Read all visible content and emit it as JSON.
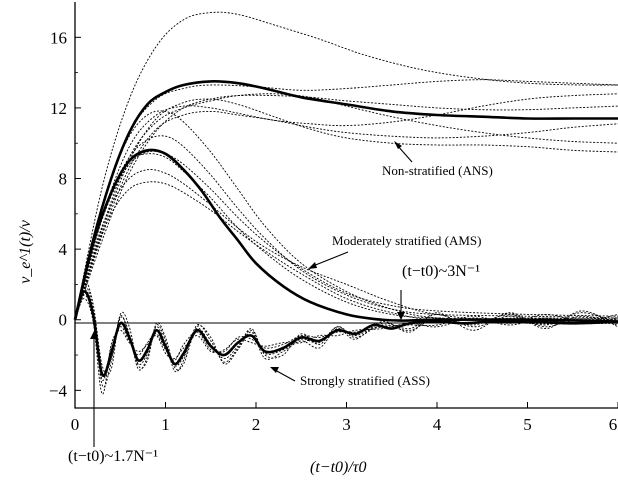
{
  "chart_data": {
    "type": "line",
    "xlabel": "(t−t0)/τ0",
    "ylabel": "v_e^1(t)/v",
    "xlim": [
      0,
      6
    ],
    "ylim": [
      -5,
      18
    ],
    "xticks": [
      "0",
      "1",
      "2",
      "3",
      "4",
      "5",
      "6"
    ],
    "yticks": [
      "−4",
      "0",
      "4",
      "8",
      "12",
      "16"
    ],
    "grid": false,
    "annotations": {
      "ans": "Non-stratified (ANS)",
      "ams": "Moderately stratified (AMS)",
      "ass": "Strongly stratified (ASS)",
      "t3": "(t−t0)~3N⁻¹",
      "t17": "(t−t0)~1.7N⁻¹"
    },
    "series": [
      {
        "style": "thick-mean",
        "x": [
          0,
          0.2,
          0.4,
          0.6,
          0.8,
          1.0,
          1.2,
          1.5,
          1.8,
          2.1,
          2.5,
          3.0,
          3.5,
          4.0,
          4.5,
          5.0,
          5.5,
          6.0
        ],
        "y": [
          0,
          4.5,
          8.0,
          10.6,
          12.2,
          12.9,
          13.3,
          13.5,
          13.4,
          13.1,
          12.6,
          12.2,
          11.8,
          11.6,
          11.5,
          11.4,
          11.4,
          11.4
        ]
      },
      {
        "style": "thick-mean",
        "x": [
          0,
          0.2,
          0.4,
          0.6,
          0.8,
          1.0,
          1.2,
          1.4,
          1.6,
          1.8,
          2.0,
          2.3,
          2.6,
          3.0,
          3.3,
          3.6,
          4.0,
          5.0,
          6.0
        ],
        "y": [
          0,
          4.3,
          7.2,
          9.0,
          9.6,
          9.4,
          8.5,
          7.3,
          5.8,
          4.5,
          3.2,
          1.9,
          1.0,
          0.3,
          0.05,
          -0.05,
          0,
          0,
          -0.1
        ]
      },
      {
        "style": "thick-mean",
        "x": [
          0,
          0.1,
          0.2,
          0.3,
          0.4,
          0.5,
          0.6,
          0.7,
          0.8,
          0.9,
          1.0,
          1.1,
          1.2,
          1.35,
          1.5,
          1.65,
          1.8,
          1.95,
          2.1,
          2.3,
          2.5,
          2.7,
          2.9,
          3.1,
          3.3,
          3.5,
          3.7,
          4.0,
          4.3,
          4.6,
          5.0,
          5.5,
          6.0
        ],
        "y": [
          0,
          1.6,
          0.3,
          -3.1,
          -1.9,
          -0.2,
          -1.0,
          -2.3,
          -1.7,
          -0.6,
          -1.5,
          -2.5,
          -1.9,
          -0.6,
          -1.5,
          -2.0,
          -1.3,
          -0.9,
          -1.8,
          -1.6,
          -1.0,
          -1.2,
          -0.6,
          -0.8,
          -0.3,
          -0.5,
          -0.2,
          -0.1,
          -0.2,
          -0.1,
          -0.1,
          -0.2,
          -0.1
        ]
      },
      {
        "style": "dotted",
        "x": [
          0,
          0.3,
          0.6,
          0.9,
          1.2,
          1.5,
          1.8,
          2.2,
          2.7,
          3.2,
          3.8,
          4.4,
          5.0,
          5.6,
          6.0
        ],
        "y": [
          0,
          7.5,
          12.5,
          15.5,
          17.0,
          17.4,
          17.3,
          16.7,
          15.9,
          15.0,
          14.2,
          13.7,
          13.4,
          13.3,
          13.3
        ]
      },
      {
        "style": "dotted",
        "x": [
          0,
          0.3,
          0.6,
          0.9,
          1.2,
          1.5,
          2.0,
          2.5,
          3.0,
          3.5,
          4.0,
          4.5,
          5.0,
          5.5,
          6.0
        ],
        "y": [
          0,
          6.5,
          10.6,
          12.5,
          13.1,
          13.3,
          13.2,
          13.0,
          13.1,
          13.3,
          13.5,
          13.6,
          13.5,
          13.4,
          13.3
        ]
      },
      {
        "style": "dotted",
        "x": [
          0,
          0.3,
          0.6,
          0.9,
          1.2,
          1.5,
          1.8,
          2.2,
          2.6,
          3.0,
          3.5,
          4.0,
          4.5,
          5.0,
          5.5,
          6.0
        ],
        "y": [
          0,
          5.2,
          9.2,
          11.2,
          12.0,
          12.4,
          12.7,
          12.8,
          12.6,
          12.1,
          11.5,
          11.0,
          10.6,
          10.3,
          10.1,
          10.0
        ]
      },
      {
        "style": "dotted",
        "x": [
          0,
          0.3,
          0.6,
          0.9,
          1.2,
          1.5,
          1.8,
          2.2,
          2.6,
          3.0,
          3.5,
          4.0,
          4.5,
          5.0,
          5.5,
          6.0
        ],
        "y": [
          0,
          5.0,
          9.0,
          11.4,
          12.3,
          12.5,
          12.2,
          11.5,
          10.8,
          10.3,
          10.0,
          9.9,
          9.9,
          9.8,
          9.6,
          9.5
        ]
      },
      {
        "style": "dotted",
        "x": [
          0,
          0.3,
          0.6,
          0.9,
          1.2,
          1.5,
          1.8,
          2.2,
          2.6,
          3.0,
          3.5,
          4.0,
          4.5,
          5.0,
          5.5,
          6.0
        ],
        "y": [
          0,
          4.5,
          8.3,
          10.7,
          12.0,
          12.5,
          12.7,
          12.7,
          12.6,
          12.4,
          12.2,
          12.0,
          11.9,
          11.9,
          12.0,
          12.1
        ]
      },
      {
        "style": "dotted",
        "x": [
          0,
          0.3,
          0.6,
          0.9,
          1.2,
          1.5,
          1.8,
          2.2,
          2.6,
          3.0,
          3.5,
          4.0,
          4.5,
          5.0,
          5.5,
          6.0
        ],
        "y": [
          0,
          5.8,
          9.8,
          11.6,
          12.1,
          12.0,
          11.7,
          11.3,
          11.1,
          11.0,
          11.2,
          11.6,
          12.1,
          12.5,
          12.7,
          12.8
        ]
      },
      {
        "style": "dotted",
        "x": [
          0,
          0.3,
          0.6,
          0.9,
          1.2,
          1.5,
          1.8,
          2.2,
          2.6,
          3.0,
          3.5,
          4.0,
          4.5,
          5.0,
          5.5,
          6.0
        ],
        "y": [
          0,
          4.8,
          8.6,
          10.8,
          11.6,
          11.8,
          11.6,
          11.3,
          10.9,
          10.6,
          10.4,
          10.3,
          10.4,
          10.6,
          10.9,
          11.1
        ]
      },
      {
        "style": "dotted",
        "x": [
          0,
          0.2,
          0.4,
          0.6,
          0.8,
          1.0,
          1.2,
          1.5,
          1.8,
          2.1,
          2.5,
          3.0,
          3.5,
          4.0,
          5.0,
          6.0
        ],
        "y": [
          0,
          4.0,
          7.2,
          9.2,
          10.2,
          10.4,
          9.8,
          8.2,
          6.3,
          4.6,
          2.8,
          1.4,
          0.6,
          0.3,
          0.2,
          0.1
        ]
      },
      {
        "style": "dotted",
        "x": [
          0,
          0.2,
          0.4,
          0.6,
          0.8,
          1.0,
          1.2,
          1.5,
          1.8,
          2.1,
          2.5,
          3.0,
          3.5,
          4.0,
          5.0,
          6.0
        ],
        "y": [
          0,
          4.5,
          8.0,
          10.4,
          11.6,
          11.8,
          11.2,
          9.5,
          7.4,
          5.3,
          3.2,
          1.6,
          0.6,
          0.1,
          -0.1,
          0
        ]
      },
      {
        "style": "dotted",
        "x": [
          0,
          0.2,
          0.4,
          0.6,
          0.8,
          1.0,
          1.2,
          1.5,
          1.8,
          2.1,
          2.5,
          3.0,
          3.5,
          4.0,
          5.0,
          6.0
        ],
        "y": [
          0,
          3.5,
          6.0,
          7.4,
          7.8,
          7.7,
          7.2,
          6.2,
          5.0,
          3.9,
          2.6,
          1.2,
          0.4,
          0,
          0.1,
          0
        ]
      },
      {
        "style": "dotted",
        "x": [
          0,
          0.2,
          0.4,
          0.6,
          0.8,
          1.0,
          1.2,
          1.5,
          1.8,
          2.1,
          2.5,
          3.0,
          3.5,
          4.0,
          5.0,
          6.0
        ],
        "y": [
          0,
          3.8,
          6.5,
          8.0,
          8.5,
          8.3,
          7.7,
          6.5,
          5.2,
          4.1,
          3.0,
          2.0,
          1.0,
          0.3,
          -0.2,
          -0.2
        ]
      },
      {
        "style": "dotted",
        "x": [
          0,
          0.2,
          0.4,
          0.6,
          0.8,
          1.0,
          1.2,
          1.5,
          1.8,
          2.1,
          2.5,
          3.0,
          3.5,
          4.0,
          5.0,
          6.0
        ],
        "y": [
          0,
          4.3,
          7.3,
          9.0,
          9.4,
          9.2,
          8.4,
          6.9,
          5.2,
          3.8,
          2.3,
          1.0,
          0.3,
          0.1,
          0,
          0.1
        ]
      },
      {
        "style": "dotted",
        "x": [
          0,
          0.2,
          0.4,
          0.6,
          0.8,
          1.0,
          1.2,
          1.5,
          1.8,
          2.1,
          2.5,
          3.0,
          3.5,
          4.0,
          5.0,
          6.0
        ],
        "y": [
          0,
          4.1,
          7.0,
          8.8,
          9.5,
          9.4,
          8.8,
          7.4,
          5.8,
          4.4,
          2.9,
          1.5,
          0.8,
          0.5,
          0.3,
          0.2
        ]
      },
      {
        "style": "dotted",
        "x": [
          0,
          0.1,
          0.2,
          0.3,
          0.4,
          0.5,
          0.6,
          0.7,
          0.8,
          0.9,
          1.0,
          1.1,
          1.2,
          1.35,
          1.5,
          1.65,
          1.8,
          1.95,
          2.1,
          2.3,
          2.5,
          2.7,
          2.9,
          3.1,
          3.4,
          3.7,
          4.0,
          4.4,
          4.8,
          5.2,
          5.6,
          6.0
        ],
        "y": [
          0,
          1.9,
          0.6,
          -3.7,
          -2.4,
          0.1,
          -0.8,
          -2.8,
          -2.1,
          -0.3,
          -1.2,
          -2.9,
          -2.3,
          -0.3,
          -1.2,
          -2.4,
          -1.6,
          -0.5,
          -2.0,
          -2.0,
          -0.8,
          -1.4,
          -0.4,
          -0.9,
          -0.2,
          -0.5,
          0.3,
          -0.4,
          0.2,
          -0.3,
          0.4,
          -0.2
        ]
      },
      {
        "style": "dotted",
        "x": [
          0,
          0.1,
          0.2,
          0.3,
          0.4,
          0.5,
          0.6,
          0.7,
          0.8,
          0.9,
          1.0,
          1.1,
          1.2,
          1.35,
          1.5,
          1.65,
          1.8,
          1.95,
          2.1,
          2.3,
          2.5,
          2.7,
          2.9,
          3.1,
          3.4,
          3.7,
          4.0,
          4.4,
          4.8,
          5.2,
          5.6,
          6.0
        ],
        "y": [
          0,
          1.2,
          -0.1,
          -4.2,
          -1.4,
          -0.6,
          -1.3,
          -1.8,
          -1.4,
          -0.9,
          -1.9,
          -2.2,
          -1.6,
          -0.9,
          -1.8,
          -1.7,
          -1.1,
          -1.3,
          -1.5,
          -1.3,
          -1.3,
          -0.9,
          -0.9,
          -0.6,
          -0.5,
          -0.2,
          -0.4,
          0.1,
          -0.3,
          0.1,
          -0.2,
          0.1
        ]
      },
      {
        "style": "dotted",
        "x": [
          0,
          0.1,
          0.2,
          0.3,
          0.4,
          0.5,
          0.6,
          0.7,
          0.8,
          0.9,
          1.0,
          1.1,
          1.2,
          1.35,
          1.5,
          1.65,
          1.8,
          1.95,
          2.1,
          2.3,
          2.5,
          2.7,
          2.9,
          3.1,
          3.4,
          3.7,
          4.0,
          4.4,
          4.8,
          5.2,
          5.6,
          6.0
        ],
        "y": [
          0,
          2.2,
          0.9,
          -2.6,
          -2.8,
          0.3,
          -0.4,
          -2.6,
          -2.3,
          -0.2,
          -1.0,
          -2.7,
          -2.5,
          -0.4,
          -1.0,
          -2.5,
          -1.7,
          -0.7,
          -2.2,
          -1.8,
          -1.2,
          -1.6,
          -0.5,
          -1.1,
          -0.1,
          -0.7,
          0.4,
          -0.6,
          0.4,
          -0.5,
          0.5,
          -0.4
        ]
      },
      {
        "style": "dotted",
        "x": [
          0,
          0.1,
          0.2,
          0.3,
          0.4,
          0.5,
          0.6,
          0.7,
          0.8,
          0.9,
          1.0,
          1.1,
          1.2,
          1.35,
          1.5,
          1.65,
          1.8,
          1.95,
          2.1,
          2.3,
          2.5,
          2.7,
          2.9,
          3.1,
          3.4,
          3.7,
          4.0,
          4.4,
          4.8,
          5.2,
          5.6,
          6.0
        ],
        "y": [
          0,
          1.4,
          0.2,
          -3.4,
          -1.6,
          -0.4,
          -1.2,
          -2.0,
          -1.3,
          -0.8,
          -1.7,
          -2.3,
          -1.4,
          -0.7,
          -1.7,
          -1.8,
          -1.0,
          -1.1,
          -1.6,
          -1.4,
          -0.9,
          -1.0,
          -0.7,
          -0.7,
          -0.4,
          -0.3,
          -0.3,
          0.2,
          -0.2,
          0.3,
          -0.1,
          0.3
        ]
      },
      {
        "style": "dotted",
        "x": [
          0,
          0.1,
          0.2,
          0.3,
          0.4,
          0.5,
          0.6,
          0.7,
          0.8,
          0.9,
          1.0,
          1.1,
          1.2,
          1.35,
          1.5,
          1.65,
          1.8,
          1.95,
          2.1,
          2.3,
          2.5,
          2.7,
          2.9,
          3.1,
          3.4,
          3.7,
          4.0,
          4.4,
          4.8,
          5.2,
          5.6,
          6.0
        ],
        "y": [
          0,
          1.7,
          0.5,
          -3.0,
          -2.2,
          0.2,
          -0.9,
          -2.5,
          -1.9,
          -0.4,
          -1.4,
          -2.6,
          -2.1,
          -0.5,
          -1.4,
          -2.2,
          -1.5,
          -0.6,
          -1.9,
          -1.7,
          -1.1,
          -1.3,
          -0.4,
          -1.0,
          -0.3,
          -0.6,
          0.1,
          -0.3,
          0.3,
          -0.4,
          0.2,
          -0.3
        ]
      }
    ]
  }
}
